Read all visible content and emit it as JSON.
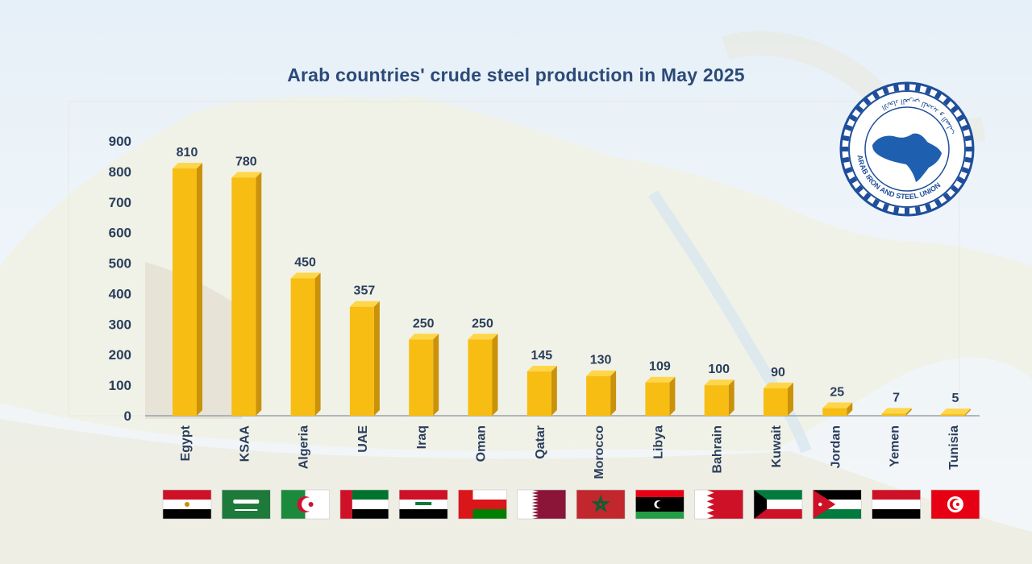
{
  "chart_data": {
    "type": "bar",
    "title": "Arab countries' crude steel production in May 2025",
    "categories": [
      "Egypt",
      "KSAA",
      "Algeria",
      "UAE",
      "Iraq",
      "Oman",
      "Qatar",
      "Morocco",
      "Libya",
      "Bahrain",
      "Kuwait",
      "Jordan",
      "Yemen",
      "Tunisia"
    ],
    "values": [
      810,
      780,
      450,
      357,
      250,
      250,
      145,
      130,
      109,
      100,
      90,
      25,
      7,
      5
    ],
    "data_labels": [
      "810",
      "780",
      "450",
      "357",
      "250",
      "250",
      "145",
      "130",
      "109",
      "100",
      "90",
      "25",
      "7",
      "5"
    ],
    "ylim": [
      0,
      900
    ],
    "yticks": [
      "0",
      "100",
      "200",
      "300",
      "400",
      "500",
      "600",
      "700",
      "800",
      "900"
    ],
    "xlabel": "",
    "ylabel": "",
    "grid": false,
    "bar_color": "#f7bd12"
  },
  "flags": [
    "egypt-flag",
    "saudi-arabia-flag",
    "algeria-flag",
    "uae-flag",
    "iraq-flag",
    "oman-flag",
    "qatar-flag",
    "morocco-flag",
    "libya-flag",
    "bahrain-flag",
    "kuwait-flag",
    "jordan-flag",
    "yemen-flag",
    "tunisia-flag"
  ],
  "logo": {
    "name": "arab-iron-and-steel-union-logo",
    "text_en": "ARAB IRON AND STEEL UNION",
    "text_ar": "الاتحاد العربي للحديد و الصلب"
  }
}
